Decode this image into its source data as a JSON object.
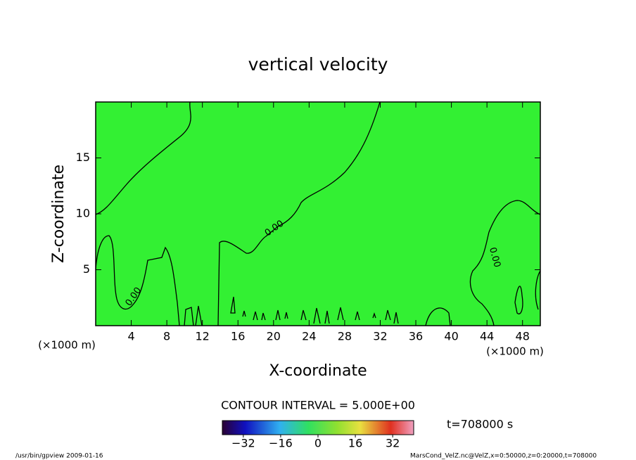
{
  "chart_data": {
    "type": "contour",
    "title": "vertical velocity",
    "x_label": "X-coordinate",
    "y_label": "Z-coordinate",
    "x_unit_label": "(×1000 m)",
    "xlim": [
      0,
      50
    ],
    "ylim": [
      0,
      20
    ],
    "xticks": [
      4,
      8,
      12,
      16,
      20,
      24,
      28,
      32,
      36,
      40,
      44,
      48
    ],
    "yticks": [
      5,
      10,
      15
    ],
    "contour_labels": [
      "0.00",
      "0.00",
      "0.00"
    ],
    "contour_interval_text": "CONTOUR INTERVAL = 5.000E+00",
    "time_text": "t=708000 s",
    "colorbar": {
      "lim": [
        -41,
        41
      ],
      "ticks": [
        {
          "value": -32,
          "label": "−32"
        },
        {
          "value": -16,
          "label": "−16"
        },
        0,
        16,
        32
      ]
    },
    "footer_left": "/usr/bin/gpview   2009-01-16",
    "footer_right": "MarsCond_VelZ.nc@VelZ,x=0:50000,z=0:20000,t=708000",
    "fill_color": "#33f033"
  }
}
